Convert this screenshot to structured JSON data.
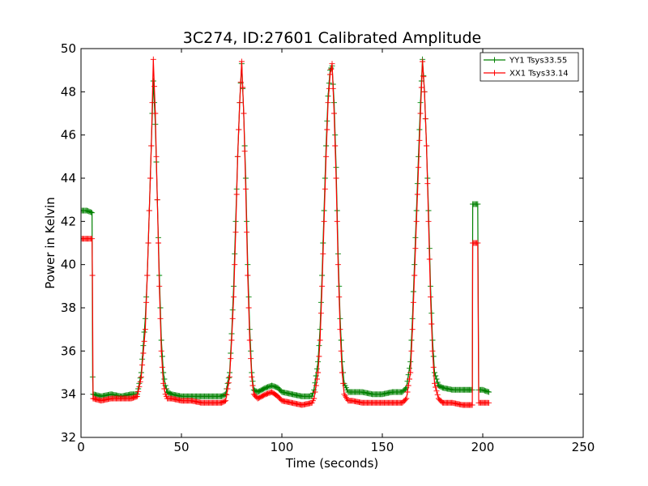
{
  "chart_data": {
    "type": "line",
    "title": "3C274, ID:27601 Calibrated Amplitude",
    "xlabel": "Time (seconds)",
    "ylabel": "Power in Kelvin",
    "xlim": [
      0,
      250
    ],
    "ylim": [
      32,
      50
    ],
    "xticks": [
      "0",
      "50",
      "100",
      "150",
      "200",
      "250"
    ],
    "yticks": [
      "32",
      "34",
      "36",
      "38",
      "40",
      "42",
      "44",
      "46",
      "48",
      "50"
    ],
    "grid": false,
    "legend_position": "top-right",
    "marker": "+",
    "series": [
      {
        "name": "YY1 Tsys33.55",
        "color": "#008000",
        "x": [
          0,
          3,
          5.5,
          5.8,
          6,
          10,
          15,
          20,
          25,
          28,
          30,
          32,
          33,
          34,
          35,
          36,
          37,
          38,
          39,
          40,
          41,
          42,
          43,
          45,
          50,
          55,
          60,
          65,
          70,
          72,
          74,
          75,
          76,
          77,
          78,
          79,
          80,
          81,
          82,
          83,
          84,
          85,
          86,
          88,
          90,
          92,
          95,
          98,
          100,
          105,
          110,
          115,
          116,
          118,
          119,
          120,
          121,
          122,
          123,
          124,
          125,
          126,
          127,
          128,
          129,
          130,
          131,
          133,
          135,
          140,
          145,
          150,
          155,
          160,
          162,
          164,
          165,
          166,
          167,
          168,
          169,
          170,
          171,
          172,
          173,
          174,
          175,
          176,
          178,
          180,
          185,
          190,
          194.8,
          195,
          197,
          197.5,
          198,
          200,
          203
        ],
        "y": [
          42.5,
          42.5,
          42.4,
          34.8,
          34.0,
          33.9,
          34.0,
          33.9,
          34.0,
          34.0,
          35.0,
          37.5,
          39.5,
          42.5,
          45.5,
          48.5,
          46.5,
          43.0,
          39.5,
          36.5,
          35.0,
          34.4,
          34.1,
          34.0,
          33.9,
          33.9,
          33.9,
          33.9,
          33.9,
          34.0,
          35.0,
          36.8,
          39.0,
          42.0,
          45.0,
          47.5,
          49.3,
          47.0,
          44.0,
          40.0,
          37.0,
          35.0,
          34.2,
          34.1,
          34.2,
          34.3,
          34.4,
          34.3,
          34.1,
          34.0,
          33.9,
          33.9,
          34.2,
          35.5,
          37.0,
          39.5,
          42.5,
          45.5,
          47.8,
          49.0,
          49.2,
          47.5,
          44.5,
          40.5,
          37.5,
          35.5,
          34.5,
          34.1,
          34.1,
          34.1,
          34.0,
          34.0,
          34.1,
          34.1,
          34.3,
          35.5,
          37.5,
          40.0,
          42.5,
          45.0,
          47.5,
          49.5,
          48.0,
          45.5,
          42.5,
          39.0,
          36.5,
          35.0,
          34.4,
          34.3,
          34.2,
          34.2,
          34.2,
          42.8,
          42.8,
          42.8,
          34.2,
          34.2,
          34.1
        ]
      },
      {
        "name": "XX1 Tsys33.14",
        "color": "#ff0000",
        "x": [
          0,
          3,
          5.5,
          5.7,
          6,
          10,
          15,
          20,
          25,
          28,
          30,
          32,
          33,
          34,
          35,
          36,
          37,
          38,
          39,
          40,
          41,
          42,
          43,
          45,
          50,
          55,
          60,
          65,
          70,
          72,
          74,
          75,
          76,
          77,
          78,
          79,
          80,
          81,
          82,
          83,
          84,
          85,
          86,
          88,
          90,
          92,
          95,
          98,
          100,
          105,
          110,
          115,
          116,
          118,
          119,
          120,
          121,
          122,
          123,
          124,
          125,
          126,
          127,
          128,
          129,
          130,
          131,
          133,
          135,
          140,
          145,
          150,
          155,
          160,
          162,
          164,
          165,
          166,
          167,
          168,
          169,
          170,
          171,
          172,
          173,
          174,
          175,
          176,
          178,
          180,
          185,
          190,
          194.8,
          195,
          197,
          197.5,
          198,
          200,
          203
        ],
        "y": [
          41.2,
          41.2,
          41.2,
          39.5,
          33.8,
          33.7,
          33.8,
          33.8,
          33.8,
          33.9,
          34.8,
          37.0,
          39.5,
          42.5,
          45.5,
          49.5,
          47.0,
          43.0,
          39.0,
          36.0,
          34.5,
          34.0,
          33.8,
          33.8,
          33.7,
          33.7,
          33.6,
          33.6,
          33.6,
          33.7,
          34.8,
          36.5,
          38.5,
          41.5,
          45.0,
          47.5,
          49.4,
          47.0,
          43.5,
          39.5,
          36.5,
          34.8,
          34.0,
          33.8,
          33.9,
          34.0,
          34.1,
          33.9,
          33.7,
          33.6,
          33.5,
          33.6,
          33.8,
          35.0,
          36.5,
          39.0,
          42.0,
          45.0,
          47.5,
          48.8,
          49.3,
          47.0,
          44.0,
          40.0,
          37.0,
          35.0,
          34.0,
          33.7,
          33.7,
          33.6,
          33.6,
          33.6,
          33.6,
          33.6,
          33.8,
          35.0,
          37.0,
          39.5,
          42.0,
          44.5,
          47.0,
          49.4,
          48.0,
          45.5,
          42.0,
          38.5,
          36.0,
          34.5,
          33.8,
          33.6,
          33.6,
          33.5,
          33.5,
          41.0,
          41.0,
          41.0,
          33.6,
          33.6,
          33.6
        ]
      }
    ]
  }
}
